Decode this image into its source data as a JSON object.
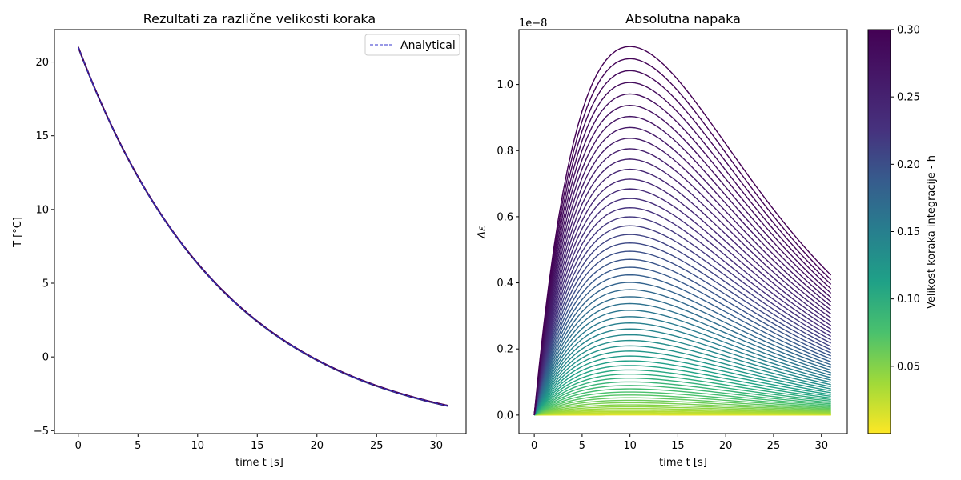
{
  "chart_data": [
    {
      "type": "line",
      "title": "Rezultati za različne velikosti koraka",
      "xlabel": "time t [s]",
      "ylabel": "T [$^{\\circ}$C]",
      "ylabel_display": "T [°C]",
      "xlim": [
        -2,
        32.5
      ],
      "ylim": [
        -5.2,
        22.2
      ],
      "xticks": [
        0,
        5,
        10,
        15,
        20,
        25,
        30
      ],
      "yticks": [
        -5,
        0,
        5,
        10,
        15,
        20
      ],
      "grid": false,
      "legend": {
        "position": "top-right",
        "entries": [
          "Analytical"
        ]
      },
      "series": [
        {
          "name": "Analytical",
          "style": "dashed",
          "color": "#3333cc",
          "x": [
            0,
            1,
            2,
            3,
            4,
            5,
            6,
            7,
            8,
            9,
            10,
            11,
            12,
            13,
            14,
            15,
            16,
            17,
            18,
            19,
            20,
            21,
            22,
            23,
            24,
            25,
            26,
            27,
            28,
            29,
            30,
            31
          ],
          "y": [
            21.0,
            18.9,
            16.9,
            15.1,
            13.4,
            11.8,
            10.3,
            8.97,
            7.72,
            6.57,
            5.5,
            4.51,
            3.6,
            2.76,
            1.98,
            1.26,
            0.59,
            -0.02,
            -0.59,
            -1.12,
            -1.61,
            -2.06,
            -2.47,
            -2.86,
            -3.21,
            -3.55,
            -3.85,
            -4.13,
            -4.39,
            -4.63,
            -4.86,
            -3.8
          ]
        }
      ],
      "numerical_overlay": {
        "colormap": "viridis_r",
        "description_color": "#440154"
      }
    },
    {
      "type": "line",
      "title": "Absolutna napaka",
      "xlabel": "time t [s]",
      "ylabel": "Δε",
      "offset_label": "1e−8",
      "xlim": [
        -1.6,
        32.7
      ],
      "ylim": [
        -0.056,
        1.166
      ],
      "xticks": [
        0,
        5,
        10,
        15,
        20,
        25,
        30
      ],
      "yticks": [
        0.0,
        0.2,
        0.4,
        0.6,
        0.8,
        1.0
      ],
      "ytick_labels": [
        "0.0",
        "0.2",
        "0.4",
        "0.6",
        "0.8",
        "1.0"
      ],
      "grid": false,
      "curve_family": {
        "h_min": 0.005,
        "h_max": 0.3,
        "count": 60,
        "peak_at_t": 10,
        "peak_max": 1.115,
        "end_value_max": 0.42,
        "t_end": 31
      },
      "colorbar": {
        "label": "Velikost koraka integracije - h",
        "colormap": "viridis_r",
        "range": [
          0.0,
          0.3
        ],
        "ticks": [
          0.05,
          0.1,
          0.15,
          0.2,
          0.25,
          0.3
        ],
        "tick_labels": [
          "0.05",
          "0.10",
          "0.15",
          "0.20",
          "0.25",
          "0.30"
        ]
      }
    }
  ]
}
